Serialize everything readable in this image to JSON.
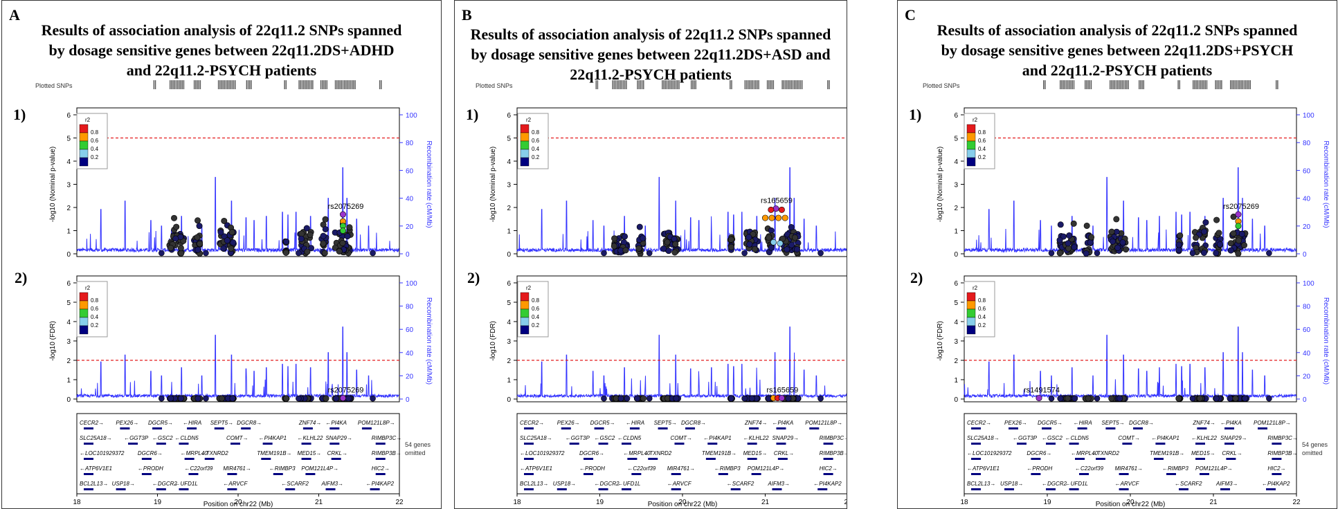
{
  "panels": [
    {
      "letter": "A",
      "title_lines": [
        "Results of association analysis of 22q11.2 SNPs spanned",
        "by dosage sensitive genes between 22q11.2DS+ADHD",
        "and 22q11.2-PSYCH patients"
      ],
      "top_label": "1)",
      "bottom_label": "2)",
      "top_annotation": "rs2075269",
      "bottom_annotation": "rs2075269"
    },
    {
      "letter": "B",
      "title_lines": [
        "Results of association analysis of 22q11.2 SNPs spanned",
        "by dosage sensitive genes between 22q11.2DS+ASD and",
        "22q11.2-PSYCH patients"
      ],
      "top_label": "1)",
      "bottom_label": "2)",
      "top_annotation": "rs165659",
      "bottom_annotation": "rs165659"
    },
    {
      "letter": "C",
      "title_lines": [
        "Results of association analysis of 22q11.2 SNPs spanned",
        "by dosage sensitive genes between 22q11.2DS+PSYCH",
        "and 22q11.2-PSYCH patients"
      ],
      "top_label": "1)",
      "bottom_label": "2)",
      "top_annotation": "rs2075269",
      "bottom_annotation": "rs1491574"
    }
  ],
  "chart_data": {
    "type": "scatter",
    "plotted_snps_label": "Plotted SNPs",
    "top_ylabel": "-log10 (Nominal p-value)",
    "bottom_ylabel": "-log10 (FDR)",
    "right_ylabel": "Recombination rate (cM/Mb)",
    "xlabel": "Position on chr22 (Mb)",
    "x_ticks": [
      "18",
      "19",
      "20",
      "21",
      "22"
    ],
    "left_ticks": [
      "0",
      "1",
      "2",
      "3",
      "4",
      "5",
      "6"
    ],
    "right_ticks": [
      "0",
      "20",
      "40",
      "60",
      "80",
      "100"
    ],
    "legend_title": "r2",
    "legend_ticks": [
      "0.8",
      "0.6",
      "0.4",
      "0.2"
    ],
    "legend_colors": [
      "#e41a1c",
      "#ff9900",
      "#33cc33",
      "#87ceeb",
      "#000080"
    ],
    "xlim": [
      18,
      22
    ],
    "ylim": [
      0,
      6
    ],
    "recomb_ylim": [
      0,
      100
    ],
    "threshold_top": 5,
    "threshold_bottom": 2,
    "genes_omitted_lines": [
      "54 genes",
      "omitted"
    ],
    "genes": [
      {
        "name": "CECR2",
        "dir": "r",
        "x": 18.0,
        "row": 0
      },
      {
        "name": "PEX26",
        "dir": "r",
        "x": 18.45,
        "row": 0
      },
      {
        "name": "DGCR5",
        "dir": "r",
        "x": 18.85,
        "row": 0
      },
      {
        "name": "HIRA",
        "dir": "l",
        "x": 19.28,
        "row": 0
      },
      {
        "name": "SEPT5",
        "dir": "r",
        "x": 19.62,
        "row": 0
      },
      {
        "name": "DGCR8",
        "dir": "r",
        "x": 19.95,
        "row": 0
      },
      {
        "name": "ZNF74",
        "dir": "r",
        "x": 20.72,
        "row": 0
      },
      {
        "name": "PI4KA",
        "dir": "l",
        "x": 21.05,
        "row": 0
      },
      {
        "name": "POM121L8P",
        "dir": "r",
        "x": 21.45,
        "row": 0
      },
      {
        "name": "SLC25A18",
        "dir": "r",
        "x": 18.0,
        "row": 1
      },
      {
        "name": "GGT3P",
        "dir": "l",
        "x": 18.55,
        "row": 1
      },
      {
        "name": "GSC2",
        "dir": "l",
        "x": 18.9,
        "row": 1
      },
      {
        "name": "CLDN5",
        "dir": "l",
        "x": 19.18,
        "row": 1
      },
      {
        "name": "COMT",
        "dir": "r",
        "x": 19.82,
        "row": 1
      },
      {
        "name": "PI4KAP1",
        "dir": "l",
        "x": 20.22,
        "row": 1
      },
      {
        "name": "KLHL22",
        "dir": "l",
        "x": 20.7,
        "row": 1
      },
      {
        "name": "SNAP29",
        "dir": "r",
        "x": 21.05,
        "row": 1
      },
      {
        "name": "RIMBP3C",
        "dir": "r",
        "x": 21.62,
        "row": 1
      },
      {
        "name": "LOC101929372",
        "dir": "l",
        "x": 18.0,
        "row": 2
      },
      {
        "name": "DGCR6",
        "dir": "r",
        "x": 18.72,
        "row": 2
      },
      {
        "name": "MRPL40",
        "dir": "l",
        "x": 19.25,
        "row": 2
      },
      {
        "name": "TXNRD2",
        "dir": "l",
        "x": 19.5,
        "row": 2
      },
      {
        "name": "TMEM191B",
        "dir": "r",
        "x": 20.2,
        "row": 2
      },
      {
        "name": "MED15",
        "dir": "r",
        "x": 20.7,
        "row": 2
      },
      {
        "name": "CRKL",
        "dir": "r",
        "x": 21.07,
        "row": 2
      },
      {
        "name": "RIMBP3B",
        "dir": "r",
        "x": 21.62,
        "row": 2
      },
      {
        "name": "ATP6V1E1",
        "dir": "l",
        "x": 18.0,
        "row": 3
      },
      {
        "name": "PRODH",
        "dir": "l",
        "x": 18.72,
        "row": 3
      },
      {
        "name": "C22orf39",
        "dir": "l",
        "x": 19.3,
        "row": 3
      },
      {
        "name": "MIR4761",
        "dir": "r",
        "x": 19.78,
        "row": 3
      },
      {
        "name": "RIMBP3",
        "dir": "l",
        "x": 20.35,
        "row": 3
      },
      {
        "name": "POM121L4P",
        "dir": "r",
        "x": 20.75,
        "row": 3
      },
      {
        "name": "HIC2",
        "dir": "r",
        "x": 21.62,
        "row": 3
      },
      {
        "name": "BCL2L13",
        "dir": "r",
        "x": 18.0,
        "row": 4
      },
      {
        "name": "USP18",
        "dir": "r",
        "x": 18.4,
        "row": 4
      },
      {
        "name": "DGCR2",
        "dir": "l",
        "x": 18.9,
        "row": 4
      },
      {
        "name": "UFD1L",
        "dir": "l",
        "x": 19.18,
        "row": 4
      },
      {
        "name": "ARVCF",
        "dir": "l",
        "x": 19.78,
        "row": 4
      },
      {
        "name": "SCARF2",
        "dir": "l",
        "x": 20.5,
        "row": 4
      },
      {
        "name": "AIFM3",
        "dir": "r",
        "x": 21.0,
        "row": 4
      },
      {
        "name": "PI4KAP2",
        "dir": "l",
        "x": 21.55,
        "row": 4
      }
    ],
    "plotted_snp_ranges": [
      [
        18.95,
        18.97
      ],
      [
        19.15,
        19.33
      ],
      [
        19.45,
        19.53
      ],
      [
        19.75,
        19.97
      ],
      [
        20.1,
        20.16
      ],
      [
        20.57,
        20.6
      ],
      [
        20.75,
        20.92
      ],
      [
        21.02,
        21.1
      ],
      [
        21.2,
        21.45
      ],
      [
        21.75,
        21.77
      ]
    ],
    "recomb_peaks": [
      [
        18.3,
        32
      ],
      [
        18.6,
        38
      ],
      [
        18.92,
        24
      ],
      [
        19.05,
        20
      ],
      [
        19.3,
        27
      ],
      [
        19.55,
        20
      ],
      [
        19.72,
        55
      ],
      [
        19.92,
        38
      ],
      [
        20.1,
        26
      ],
      [
        20.2,
        24
      ],
      [
        20.35,
        27
      ],
      [
        20.55,
        30
      ],
      [
        20.62,
        28
      ],
      [
        20.72,
        30
      ],
      [
        20.9,
        27
      ],
      [
        21.12,
        40
      ],
      [
        21.3,
        62
      ],
      [
        21.35,
        40
      ],
      [
        21.47,
        25
      ],
      [
        21.62,
        20
      ]
    ],
    "snp_clusters": [
      [
        19.15,
        19.33,
        0.5
      ],
      [
        19.45,
        19.53,
        0.5
      ],
      [
        19.76,
        19.95,
        0.6
      ],
      [
        20.58,
        20.6,
        0.4
      ],
      [
        20.77,
        20.91,
        0.6
      ],
      [
        21.03,
        21.09,
        0.5
      ],
      [
        21.2,
        21.4,
        0.6
      ]
    ],
    "highlight_snps": [
      {
        "panel": 0,
        "plot": "top",
        "x": 21.3,
        "y": 1.7,
        "color": "#9933cc"
      },
      {
        "panel": 0,
        "plot": "top",
        "x": 21.3,
        "y": 1.4,
        "color": "#ff9900"
      },
      {
        "panel": 0,
        "plot": "top",
        "x": 21.3,
        "y": 1.2,
        "color": "#33cc33"
      },
      {
        "panel": 0,
        "plot": "top",
        "x": 21.3,
        "y": 1.0,
        "color": "#33cc33"
      },
      {
        "panel": 0,
        "plot": "bottom",
        "x": 21.3,
        "y": 0.05,
        "color": "#9933cc"
      },
      {
        "panel": 1,
        "plot": "top",
        "x": 21.13,
        "y": 1.95,
        "color": "#9933cc"
      },
      {
        "panel": 1,
        "plot": "top",
        "x": 21.07,
        "y": 1.9,
        "color": "#e41a1c"
      },
      {
        "panel": 1,
        "plot": "top",
        "x": 21.2,
        "y": 1.9,
        "color": "#e41a1c"
      },
      {
        "panel": 1,
        "plot": "top",
        "x": 21.0,
        "y": 1.55,
        "color": "#ff9900"
      },
      {
        "panel": 1,
        "plot": "top",
        "x": 21.08,
        "y": 1.55,
        "color": "#ff9900"
      },
      {
        "panel": 1,
        "plot": "top",
        "x": 21.16,
        "y": 1.55,
        "color": "#ff9900"
      },
      {
        "panel": 1,
        "plot": "top",
        "x": 21.24,
        "y": 1.55,
        "color": "#ff9900"
      },
      {
        "panel": 1,
        "plot": "top",
        "x": 21.1,
        "y": 0.5,
        "color": "#87ceeb"
      },
      {
        "panel": 1,
        "plot": "top",
        "x": 21.18,
        "y": 0.45,
        "color": "#87ceeb"
      },
      {
        "panel": 1,
        "plot": "bottom",
        "x": 21.1,
        "y": 0.05,
        "color": "#ff9900"
      },
      {
        "panel": 1,
        "plot": "bottom",
        "x": 21.15,
        "y": 0.05,
        "color": "#e41a1c"
      },
      {
        "panel": 1,
        "plot": "bottom",
        "x": 21.2,
        "y": 0.05,
        "color": "#9933cc"
      },
      {
        "panel": 2,
        "plot": "top",
        "x": 21.3,
        "y": 1.7,
        "color": "#9933cc"
      },
      {
        "panel": 2,
        "plot": "top",
        "x": 21.3,
        "y": 1.4,
        "color": "#ff9900"
      },
      {
        "panel": 2,
        "plot": "top",
        "x": 21.3,
        "y": 1.2,
        "color": "#33cc33"
      },
      {
        "panel": 2,
        "plot": "bottom",
        "x": 18.9,
        "y": 0.05,
        "color": "#9933cc"
      }
    ]
  }
}
